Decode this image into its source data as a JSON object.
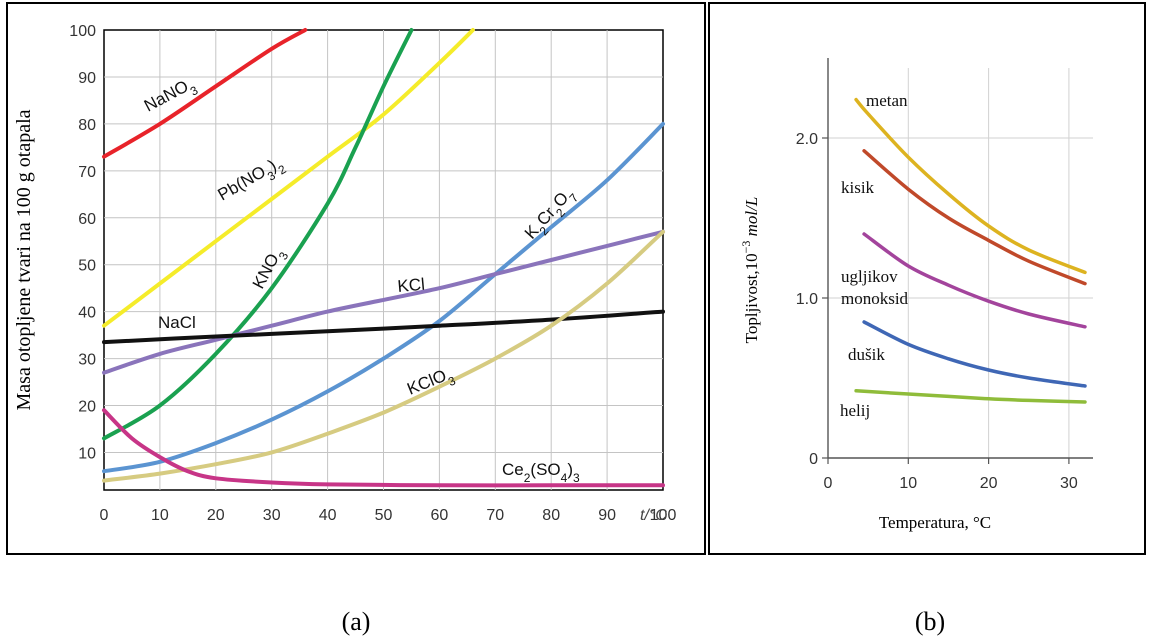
{
  "chart_data": [
    {
      "type": "line",
      "panel_label": "(a)",
      "ylabel": "Masa otopljene tvari na 100 g otapala",
      "xlabel": "t/°C",
      "xlim": [
        0,
        100
      ],
      "ylim": [
        2,
        100
      ],
      "xticks": [
        0,
        10,
        20,
        30,
        40,
        50,
        60,
        70,
        80,
        90,
        100
      ],
      "yticks": [
        10,
        20,
        30,
        40,
        50,
        60,
        70,
        80,
        90,
        100
      ],
      "grid": true,
      "series": [
        {
          "name": "NaNO3",
          "label_main": "NaNO",
          "label_sub": "3",
          "color": "#e8232a",
          "x": [
            0,
            10,
            20,
            30,
            36
          ],
          "y": [
            73,
            80,
            88,
            96,
            100
          ]
        },
        {
          "name": "Pb(NO3)2",
          "label_parts": [
            "Pb(NO",
            "3",
            ")",
            "2"
          ],
          "color": "#f5ec2a",
          "x": [
            0,
            10,
            20,
            30,
            40,
            50,
            60,
            66
          ],
          "y": [
            37,
            46,
            55,
            64,
            73,
            82,
            93,
            100
          ]
        },
        {
          "name": "KNO3",
          "label_main": "KNO",
          "label_sub": "3",
          "color": "#1aa150",
          "x": [
            0,
            10,
            20,
            30,
            40,
            45,
            50,
            55
          ],
          "y": [
            13,
            20,
            31,
            45,
            63,
            75,
            88,
            100
          ]
        },
        {
          "name": "K2Cr2O7",
          "label_parts": [
            "K",
            "2",
            "Cr",
            "2",
            "O",
            "7"
          ],
          "color": "#5b94d1",
          "x": [
            0,
            10,
            20,
            30,
            40,
            50,
            60,
            70,
            80,
            90,
            100
          ],
          "y": [
            6,
            8,
            12,
            17,
            23,
            30,
            38,
            48,
            58,
            68,
            80
          ]
        },
        {
          "name": "KCl",
          "label_main": "KCl",
          "color": "#8a74bb",
          "x": [
            0,
            10,
            20,
            30,
            40,
            50,
            60,
            70,
            80,
            90,
            100
          ],
          "y": [
            27,
            31,
            34,
            37,
            40,
            42.5,
            45,
            48,
            51,
            54,
            57
          ]
        },
        {
          "name": "NaCl",
          "label_main": "NaCl",
          "color": "#111111",
          "x": [
            0,
            20,
            40,
            60,
            80,
            100
          ],
          "y": [
            33.5,
            34.7,
            35.8,
            37,
            38.3,
            40
          ]
        },
        {
          "name": "KClO3",
          "label_main": "KClO",
          "label_sub": "3",
          "color": "#d6cb81",
          "x": [
            0,
            10,
            20,
            30,
            40,
            50,
            60,
            70,
            80,
            90,
            100
          ],
          "y": [
            4,
            5.5,
            7.5,
            10,
            14,
            18.5,
            24,
            30,
            37,
            46,
            57
          ]
        },
        {
          "name": "Ce2(SO4)3",
          "label_parts": [
            "Ce",
            "2",
            "(SO",
            "4",
            ")",
            "3"
          ],
          "color": "#c73587",
          "x": [
            0,
            5,
            10,
            15,
            20,
            30,
            40,
            60,
            80,
            100
          ],
          "y": [
            19,
            13,
            9,
            6,
            4.5,
            3.6,
            3.2,
            3,
            3,
            3
          ]
        }
      ]
    },
    {
      "type": "line",
      "panel_label": "(b)",
      "ylabel": "Topljivost,10⁻³ mol/L",
      "xlabel": "Temperatura, °C",
      "xlim": [
        0,
        33
      ],
      "ylim": [
        0,
        2.5
      ],
      "xticks": [
        0,
        10,
        20,
        30
      ],
      "yticks": [
        0,
        1.0,
        2.0
      ],
      "ytick_labels": [
        "0",
        "1.0",
        "2.0"
      ],
      "grid": true,
      "series": [
        {
          "name": "metan",
          "color": "#ddb320",
          "x": [
            3.5,
            5,
            10,
            15,
            20,
            25,
            32
          ],
          "y": [
            2.24,
            2.15,
            1.88,
            1.65,
            1.45,
            1.3,
            1.16
          ]
        },
        {
          "name": "kisik",
          "color": "#c0492a",
          "x": [
            4.5,
            10,
            15,
            20,
            25,
            32
          ],
          "y": [
            1.92,
            1.68,
            1.5,
            1.36,
            1.23,
            1.09
          ]
        },
        {
          "name": "ugljikov monoksid",
          "label_lines": [
            "ugljikov",
            "monoksid"
          ],
          "color": "#a3449c",
          "x": [
            4.5,
            10,
            15,
            20,
            25,
            32
          ],
          "y": [
            1.4,
            1.2,
            1.08,
            0.98,
            0.9,
            0.82
          ]
        },
        {
          "name": "dušik",
          "color": "#3f67b5",
          "x": [
            4.5,
            10,
            15,
            20,
            25,
            32
          ],
          "y": [
            0.85,
            0.71,
            0.62,
            0.55,
            0.5,
            0.45
          ]
        },
        {
          "name": "helij",
          "color": "#8fbc3a",
          "x": [
            3.5,
            10,
            15,
            20,
            25,
            32
          ],
          "y": [
            0.42,
            0.4,
            0.385,
            0.37,
            0.36,
            0.35
          ]
        }
      ]
    }
  ]
}
